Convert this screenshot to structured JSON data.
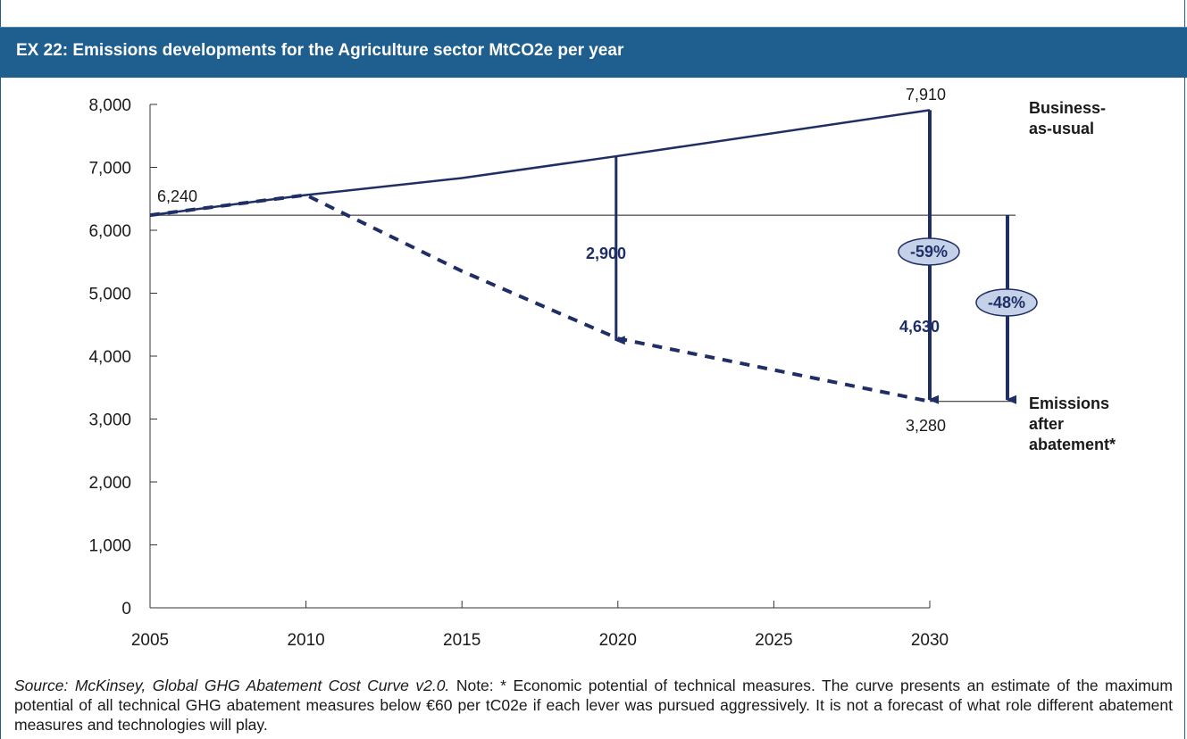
{
  "title": "EX 22: Emissions developments for the Agriculture sector MtCO2e per year",
  "colors": {
    "header": "#1f5f8f",
    "series": "#1f2f66",
    "bubble_fill": "#c5d1e8"
  },
  "chart_data": {
    "type": "line",
    "xlim": [
      2005,
      2030
    ],
    "ylim": [
      0,
      8000
    ],
    "x_ticks": [
      "2005",
      "2010",
      "2015",
      "2020",
      "2025",
      "2030"
    ],
    "y_ticks": [
      "0",
      "1,000",
      "2,000",
      "3,000",
      "4,000",
      "5,000",
      "6,000",
      "7,000",
      "8,000"
    ],
    "grid": false,
    "series": [
      {
        "name": "Business-as-usual",
        "style": "solid",
        "x": [
          2005,
          2010,
          2015,
          2020,
          2030
        ],
        "y": [
          6240,
          6560,
          6830,
          7180,
          7910
        ]
      },
      {
        "name": "Emissions after abatement*",
        "style": "dashed",
        "x": [
          2005,
          2010,
          2015,
          2020,
          2030
        ],
        "y": [
          6240,
          6560,
          5350,
          4280,
          3280
        ]
      }
    ],
    "reference_line": {
      "y": 6240
    },
    "point_labels": {
      "start": "6,240",
      "bau_end": "7,910",
      "abated_end": "3,280"
    },
    "series_labels": {
      "bau_line1": "Business-",
      "bau_line2": "as-usual",
      "abated_line1": "Emissions",
      "abated_line2": "after",
      "abated_line3": "abatement*"
    },
    "annotations": {
      "gap_2020": "2,900",
      "gap_2030": "4,630",
      "pct_vs_bau": "-59%",
      "pct_vs_2005": "-48%"
    }
  },
  "footer": {
    "source": "Source: McKinsey, Global GHG Abatement Cost Curve v2.0.",
    "note": " Note: * Economic potential of technical measures. The curve presents an estimate of the maximum potential of all technical GHG abatement measures below €60 per tC02e if each lever was pursued aggressively.  It is not a forecast of what role different abatement measures and technologies will play."
  }
}
